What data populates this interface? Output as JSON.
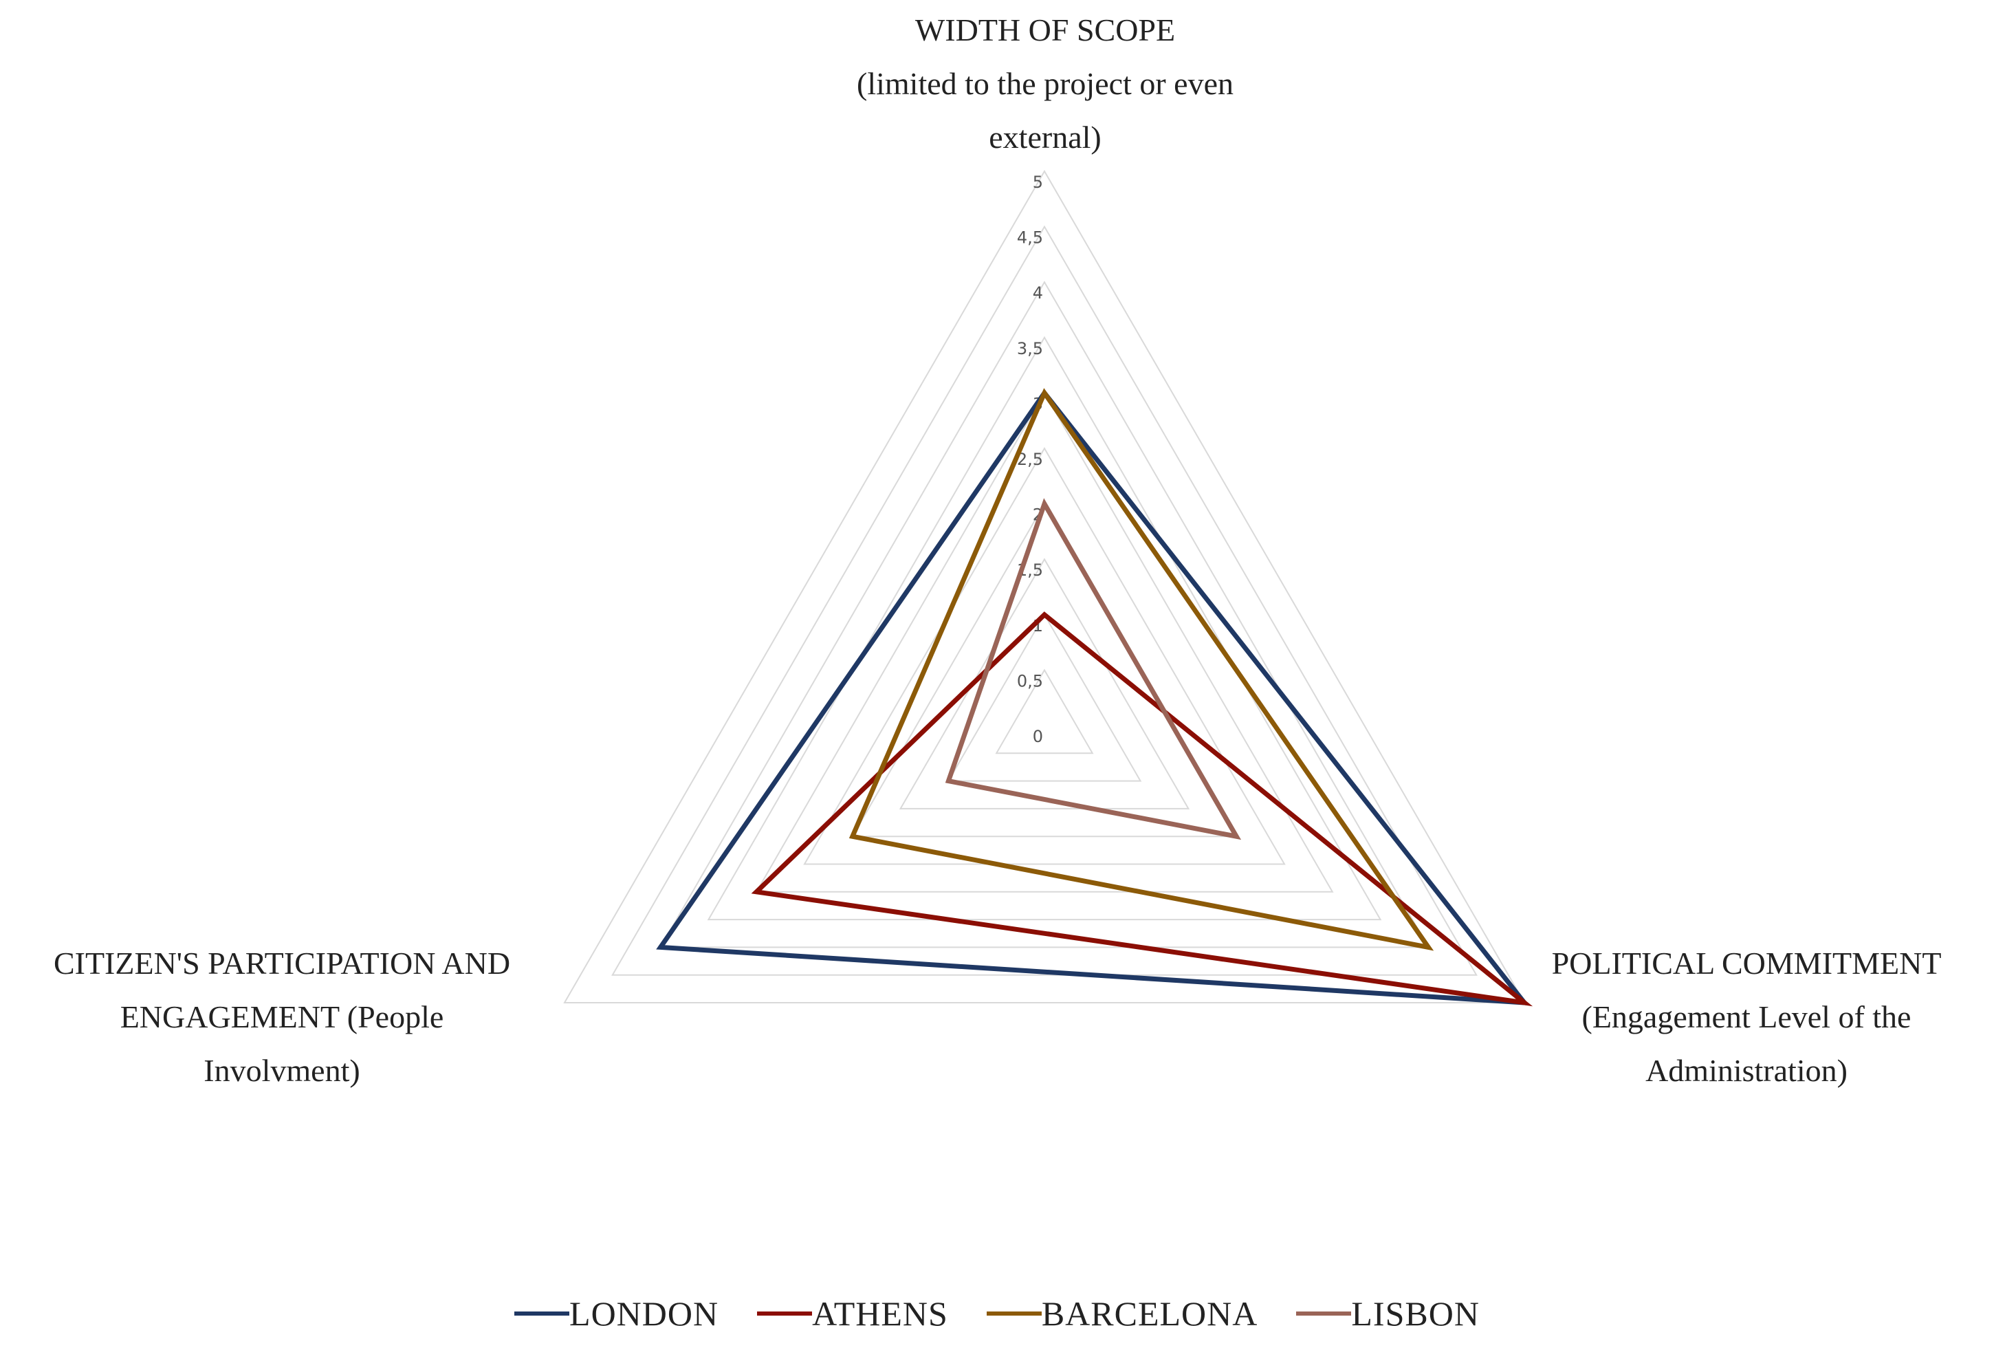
{
  "chart_data": {
    "type": "radar",
    "axes": [
      {
        "key": "width_of_scope",
        "label_lines": [
          "WIDTH OF SCOPE",
          "(limited to the project or even",
          "external)"
        ]
      },
      {
        "key": "political_commitment",
        "label_lines": [
          "POLITICAL COMMITMENT",
          "(Engagement Level of the",
          "Administration)"
        ]
      },
      {
        "key": "citizens_participation",
        "label_lines": [
          "CITIZEN'S PARTICIPATION AND",
          "ENGAGEMENT (People",
          "Involvment)"
        ]
      }
    ],
    "scale": {
      "min": 0,
      "max": 5,
      "step": 0.5,
      "tick_labels": [
        "0",
        "0,5",
        "1",
        "1,5",
        "2",
        "2,5",
        "3",
        "3,5",
        "4",
        "4,5",
        "5"
      ]
    },
    "series": [
      {
        "name": "LONDON",
        "color": "#1f3864",
        "values": [
          3,
          5,
          4
        ]
      },
      {
        "name": "ATHENS",
        "color": "#8b0e04",
        "values": [
          1,
          5,
          3
        ]
      },
      {
        "name": "BARCELONA",
        "color": "#8c5a08",
        "values": [
          3,
          4,
          2
        ]
      },
      {
        "name": "LISBON",
        "color": "#9a6457",
        "values": [
          2,
          2,
          1
        ]
      }
    ],
    "grid": true,
    "grid_color": "#d9d9d9",
    "legend_position": "bottom"
  }
}
